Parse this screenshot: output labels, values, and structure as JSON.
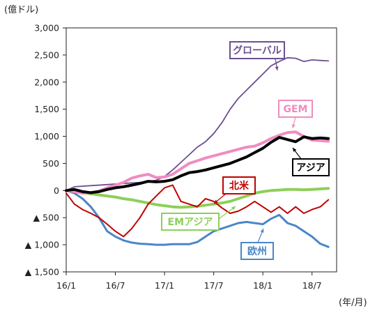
{
  "chart_data": {
    "type": "line",
    "title": "",
    "xlabel": "(年/月)",
    "ylabel": "(億ドル)",
    "ylim": [
      -1500,
      3000
    ],
    "xlim": [
      "2016-01",
      "2018-10"
    ],
    "y_ticks": [
      3000,
      2500,
      2000,
      1500,
      1000,
      500,
      0,
      -500,
      -1000,
      -1500
    ],
    "y_tick_labels": [
      "3,000",
      "2,500",
      "2,000",
      "1,500",
      "1,000",
      "500",
      "0",
      "▲ 500",
      "▲ 1,000",
      "▲ 1,500"
    ],
    "x_ticks": [
      "2016-01",
      "2016-07",
      "2017-01",
      "2017-07",
      "2018-01",
      "2018-07"
    ],
    "x_tick_labels": [
      "16/1",
      "16/7",
      "17/1",
      "17/7",
      "18/1",
      "18/7"
    ],
    "grid": false,
    "series": [
      {
        "name": "グローバル",
        "color": "#6b4f8f",
        "points": [
          [
            "2016-01",
            0
          ],
          [
            "2016-02",
            70
          ],
          [
            "2016-04",
            90
          ],
          [
            "2016-06",
            110
          ],
          [
            "2016-08",
            130
          ],
          [
            "2016-10",
            150
          ],
          [
            "2016-12",
            190
          ],
          [
            "2017-01",
            260
          ],
          [
            "2017-02",
            380
          ],
          [
            "2017-03",
            520
          ],
          [
            "2017-04",
            660
          ],
          [
            "2017-05",
            800
          ],
          [
            "2017-06",
            900
          ],
          [
            "2017-07",
            1050
          ],
          [
            "2017-08",
            1250
          ],
          [
            "2017-09",
            1500
          ],
          [
            "2017-10",
            1700
          ],
          [
            "2017-11",
            1850
          ],
          [
            "2017-12",
            2000
          ],
          [
            "2018-01",
            2150
          ],
          [
            "2018-02",
            2300
          ],
          [
            "2018-03",
            2380
          ],
          [
            "2018-04",
            2450
          ],
          [
            "2018-05",
            2440
          ],
          [
            "2018-06",
            2380
          ],
          [
            "2018-07",
            2410
          ],
          [
            "2018-08",
            2400
          ],
          [
            "2018-09",
            2390
          ]
        ]
      },
      {
        "name": "GEM",
        "color": "#f08cc0",
        "points": [
          [
            "2016-01",
            0
          ],
          [
            "2016-02",
            -20
          ],
          [
            "2016-03",
            -50
          ],
          [
            "2016-04",
            -40
          ],
          [
            "2016-05",
            -10
          ],
          [
            "2016-06",
            50
          ],
          [
            "2016-07",
            100
          ],
          [
            "2016-08",
            150
          ],
          [
            "2016-09",
            230
          ],
          [
            "2016-10",
            270
          ],
          [
            "2016-11",
            300
          ],
          [
            "2016-12",
            240
          ],
          [
            "2017-01",
            250
          ],
          [
            "2017-02",
            300
          ],
          [
            "2017-03",
            400
          ],
          [
            "2017-04",
            500
          ],
          [
            "2017-05",
            550
          ],
          [
            "2017-06",
            600
          ],
          [
            "2017-07",
            640
          ],
          [
            "2017-08",
            680
          ],
          [
            "2017-09",
            720
          ],
          [
            "2017-10",
            760
          ],
          [
            "2017-11",
            800
          ],
          [
            "2017-12",
            820
          ],
          [
            "2018-01",
            880
          ],
          [
            "2018-02",
            960
          ],
          [
            "2018-03",
            1020
          ],
          [
            "2018-04",
            1070
          ],
          [
            "2018-05",
            1080
          ],
          [
            "2018-06",
            1000
          ],
          [
            "2018-07",
            930
          ],
          [
            "2018-08",
            920
          ],
          [
            "2018-09",
            910
          ]
        ]
      },
      {
        "name": "アジア",
        "color": "#000000",
        "points": [
          [
            "2016-01",
            0
          ],
          [
            "2016-02",
            20
          ],
          [
            "2016-03",
            -20
          ],
          [
            "2016-04",
            -40
          ],
          [
            "2016-05",
            -20
          ],
          [
            "2016-06",
            20
          ],
          [
            "2016-07",
            50
          ],
          [
            "2016-08",
            70
          ],
          [
            "2016-09",
            100
          ],
          [
            "2016-10",
            130
          ],
          [
            "2016-11",
            170
          ],
          [
            "2016-12",
            160
          ],
          [
            "2017-01",
            170
          ],
          [
            "2017-02",
            200
          ],
          [
            "2017-03",
            270
          ],
          [
            "2017-04",
            330
          ],
          [
            "2017-05",
            350
          ],
          [
            "2017-06",
            380
          ],
          [
            "2017-07",
            420
          ],
          [
            "2017-08",
            460
          ],
          [
            "2017-09",
            500
          ],
          [
            "2017-10",
            560
          ],
          [
            "2017-11",
            620
          ],
          [
            "2017-12",
            700
          ],
          [
            "2018-01",
            780
          ],
          [
            "2018-02",
            890
          ],
          [
            "2018-03",
            980
          ],
          [
            "2018-04",
            940
          ],
          [
            "2018-05",
            900
          ],
          [
            "2018-06",
            990
          ],
          [
            "2018-07",
            960
          ],
          [
            "2018-08",
            970
          ],
          [
            "2018-09",
            960
          ]
        ]
      },
      {
        "name": "北米",
        "color": "#c00000",
        "points": [
          [
            "2016-01",
            -50
          ],
          [
            "2016-02",
            -250
          ],
          [
            "2016-03",
            -350
          ],
          [
            "2016-04",
            -420
          ],
          [
            "2016-05",
            -500
          ],
          [
            "2016-06",
            -620
          ],
          [
            "2016-07",
            -750
          ],
          [
            "2016-08",
            -850
          ],
          [
            "2016-09",
            -700
          ],
          [
            "2016-10",
            -500
          ],
          [
            "2016-11",
            -250
          ],
          [
            "2016-12",
            -100
          ],
          [
            "2017-01",
            50
          ],
          [
            "2017-02",
            100
          ],
          [
            "2017-03",
            -200
          ],
          [
            "2017-04",
            -250
          ],
          [
            "2017-05",
            -300
          ],
          [
            "2017-06",
            -150
          ],
          [
            "2017-07",
            -200
          ],
          [
            "2017-08",
            -320
          ],
          [
            "2017-09",
            -420
          ],
          [
            "2017-10",
            -380
          ],
          [
            "2017-11",
            -300
          ],
          [
            "2017-12",
            -200
          ],
          [
            "2018-01",
            -300
          ],
          [
            "2018-02",
            -400
          ],
          [
            "2018-03",
            -300
          ],
          [
            "2018-04",
            -420
          ],
          [
            "2018-05",
            -300
          ],
          [
            "2018-06",
            -420
          ],
          [
            "2018-07",
            -350
          ],
          [
            "2018-08",
            -300
          ],
          [
            "2018-09",
            -170
          ]
        ]
      },
      {
        "name": "EMアジア",
        "color": "#8ccf5a",
        "points": [
          [
            "2016-01",
            0
          ],
          [
            "2016-02",
            -20
          ],
          [
            "2016-03",
            -40
          ],
          [
            "2016-04",
            -60
          ],
          [
            "2016-05",
            -80
          ],
          [
            "2016-06",
            -100
          ],
          [
            "2016-07",
            -120
          ],
          [
            "2016-08",
            -150
          ],
          [
            "2016-09",
            -170
          ],
          [
            "2016-10",
            -200
          ],
          [
            "2016-11",
            -230
          ],
          [
            "2016-12",
            -260
          ],
          [
            "2017-01",
            -280
          ],
          [
            "2017-02",
            -300
          ],
          [
            "2017-03",
            -310
          ],
          [
            "2017-04",
            -300
          ],
          [
            "2017-05",
            -290
          ],
          [
            "2017-06",
            -270
          ],
          [
            "2017-07",
            -250
          ],
          [
            "2017-08",
            -230
          ],
          [
            "2017-09",
            -200
          ],
          [
            "2017-10",
            -150
          ],
          [
            "2017-11",
            -100
          ],
          [
            "2017-12",
            -50
          ],
          [
            "2018-01",
            -20
          ],
          [
            "2018-02",
            0
          ],
          [
            "2018-03",
            10
          ],
          [
            "2018-04",
            20
          ],
          [
            "2018-05",
            20
          ],
          [
            "2018-06",
            15
          ],
          [
            "2018-07",
            20
          ],
          [
            "2018-08",
            30
          ],
          [
            "2018-09",
            40
          ]
        ]
      },
      {
        "name": "欧州",
        "color": "#4a86c8",
        "points": [
          [
            "2016-01",
            0
          ],
          [
            "2016-02",
            -50
          ],
          [
            "2016-03",
            -150
          ],
          [
            "2016-04",
            -300
          ],
          [
            "2016-05",
            -500
          ],
          [
            "2016-06",
            -750
          ],
          [
            "2016-07",
            -850
          ],
          [
            "2016-08",
            -920
          ],
          [
            "2016-09",
            -960
          ],
          [
            "2016-10",
            -980
          ],
          [
            "2016-11",
            -990
          ],
          [
            "2016-12",
            -1000
          ],
          [
            "2017-01",
            -1000
          ],
          [
            "2017-02",
            -990
          ],
          [
            "2017-03",
            -990
          ],
          [
            "2017-04",
            -990
          ],
          [
            "2017-05",
            -950
          ],
          [
            "2017-06",
            -850
          ],
          [
            "2017-07",
            -750
          ],
          [
            "2017-08",
            -700
          ],
          [
            "2017-09",
            -650
          ],
          [
            "2017-10",
            -600
          ],
          [
            "2017-11",
            -580
          ],
          [
            "2017-12",
            -600
          ],
          [
            "2018-01",
            -620
          ],
          [
            "2018-02",
            -520
          ],
          [
            "2018-03",
            -450
          ],
          [
            "2018-04",
            -600
          ],
          [
            "2018-05",
            -650
          ],
          [
            "2018-06",
            -750
          ],
          [
            "2018-07",
            -850
          ],
          [
            "2018-08",
            -980
          ],
          [
            "2018-09",
            -1040
          ]
        ]
      }
    ],
    "labels": [
      {
        "series": "グローバル",
        "text": "グローバル"
      },
      {
        "series": "GEM",
        "text": "GEM"
      },
      {
        "series": "アジア",
        "text": "アジア"
      },
      {
        "series": "北米",
        "text": "北米"
      },
      {
        "series": "EMアジア",
        "text": "EMアジア"
      },
      {
        "series": "欧州",
        "text": "欧州"
      }
    ]
  }
}
